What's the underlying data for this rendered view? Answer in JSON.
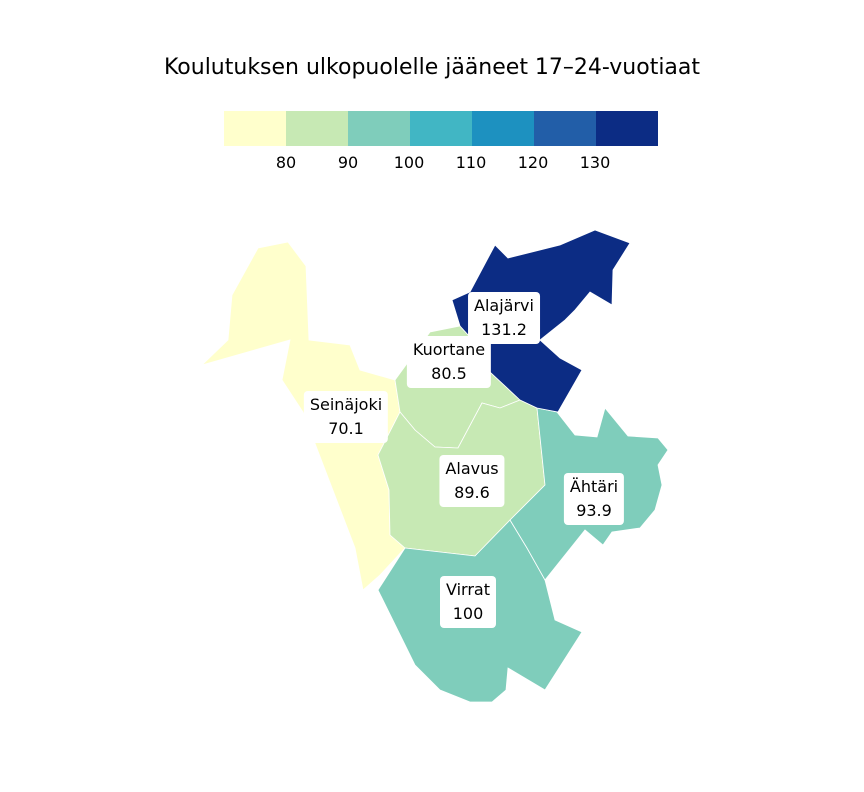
{
  "title": "Koulutuksen ulkopuolelle jääneet 17–24-vuotiaat",
  "legend": {
    "colors": [
      "#ffffcc",
      "#c7e9b4",
      "#7fcdbb",
      "#41b6c4",
      "#1d91c0",
      "#225ea8",
      "#0c2c84"
    ],
    "ticks": [
      "80",
      "90",
      "100",
      "110",
      "120",
      "130"
    ]
  },
  "regions": [
    {
      "name": "Seinäjoki",
      "value": "70.1",
      "color": "#ffffcc"
    },
    {
      "name": "Kuortane",
      "value": "80.5",
      "color": "#c7e9b4"
    },
    {
      "name": "Alavus",
      "value": "89.6",
      "color": "#c7e9b4"
    },
    {
      "name": "Virrat",
      "value": "100",
      "color": "#7fcdbb"
    },
    {
      "name": "Ähtäri",
      "value": "93.9",
      "color": "#7fcdbb"
    },
    {
      "name": "Alajärvi",
      "value": "131.2",
      "color": "#0c2c84"
    }
  ]
}
